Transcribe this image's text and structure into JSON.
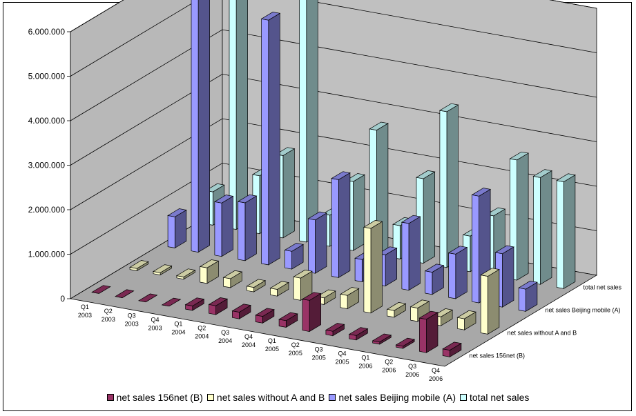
{
  "chart_data": {
    "type": "bar",
    "title": "",
    "xlabel": "",
    "ylabel": "",
    "ylim": [
      0,
      6000000
    ],
    "y_ticks": [
      "0",
      "1.000.000",
      "2.000.000",
      "3.000.000",
      "4.000.000",
      "5.000.000",
      "6.000.000"
    ],
    "categories": [
      {
        "q": "Q1",
        "y": "2003"
      },
      {
        "q": "Q2",
        "y": "2003"
      },
      {
        "q": "Q3",
        "y": "2003"
      },
      {
        "q": "Q4",
        "y": "2003"
      },
      {
        "q": "Q1",
        "y": "2004"
      },
      {
        "q": "Q2",
        "y": "2004"
      },
      {
        "q": "Q3",
        "y": "2004"
      },
      {
        "q": "Q4",
        "y": "2004"
      },
      {
        "q": "Q1",
        "y": "2005"
      },
      {
        "q": "Q2",
        "y": "2005"
      },
      {
        "q": "Q3",
        "y": "2005"
      },
      {
        "q": "Q4",
        "y": "2005"
      },
      {
        "q": "Q1",
        "y": "2006"
      },
      {
        "q": "Q2",
        "y": "2006"
      },
      {
        "q": "Q3",
        "y": "2006"
      },
      {
        "q": "Q4",
        "y": "2006"
      }
    ],
    "series": [
      {
        "name": "net sales 156net (B)",
        "color": "#993366",
        "values": [
          0,
          0,
          0,
          0,
          100000,
          200000,
          150000,
          150000,
          150000,
          700000,
          100000,
          100000,
          50000,
          50000,
          750000,
          150000
        ]
      },
      {
        "name": "net sales without A and B",
        "color": "#FFFFCC",
        "values": [
          50000,
          50000,
          50000,
          350000,
          200000,
          100000,
          150000,
          500000,
          150000,
          300000,
          1900000,
          150000,
          300000,
          200000,
          250000,
          1300000
        ]
      },
      {
        "name": "net sales Beijing mobile (A)",
        "color": "#9999FF",
        "values": [
          700000,
          5900000,
          1200000,
          1300000,
          5500000,
          400000,
          1200000,
          2200000,
          500000,
          700000,
          1500000,
          500000,
          1000000,
          2400000,
          1200000,
          500000
        ]
      },
      {
        "name": "total net sales",
        "color": "#CCFFFF",
        "values": [
          750000,
          5900000,
          1300000,
          1850000,
          5800000,
          700000,
          1550000,
          2800000,
          750000,
          1900000,
          3500000,
          800000,
          1350000,
          2700000,
          2400000,
          2400000
        ]
      }
    ],
    "depth_labels": [
      "net sales 156net (B)",
      "net sales without A and B",
      "net sales Beijing mobile (A)",
      "total net sales"
    ],
    "legend": [
      "net sales 156net (B)",
      "net sales without A and B",
      "net sales Beijing mobile (A)",
      "total net sales"
    ],
    "grid": true,
    "legend_position": "bottom"
  }
}
